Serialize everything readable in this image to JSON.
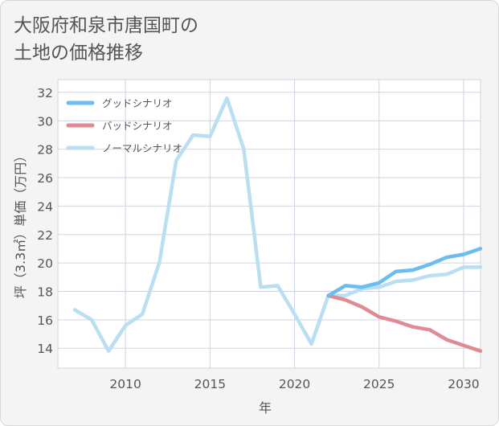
{
  "title": "大阪府和泉市唐国町の\n土地の価格推移",
  "chart_data": {
    "type": "line",
    "xlabel": "年",
    "ylabel": "坪（3.3㎡）単価（万円）",
    "xlim": [
      2006,
      2031
    ],
    "ylim": [
      12.6,
      32.9
    ],
    "xticks": [
      2010,
      2015,
      2020,
      2025,
      2030
    ],
    "yticks": [
      14,
      16,
      18,
      20,
      22,
      24,
      26,
      28,
      30,
      32
    ],
    "legend_position": "top-left",
    "series": [
      {
        "name": "グッドシナリオ",
        "color": "#6bbcf0",
        "x": [
          2022,
          2023,
          2024,
          2025,
          2026,
          2027,
          2028,
          2029,
          2030,
          2031
        ],
        "values": [
          17.7,
          18.4,
          18.3,
          18.6,
          19.4,
          19.5,
          19.9,
          20.4,
          20.6,
          21.0
        ]
      },
      {
        "name": "バッドシナリオ",
        "color": "#e08a94",
        "x": [
          2022,
          2023,
          2024,
          2025,
          2026,
          2027,
          2028,
          2029,
          2030,
          2031
        ],
        "values": [
          17.7,
          17.4,
          16.9,
          16.2,
          15.9,
          15.5,
          15.3,
          14.6,
          14.2,
          13.8
        ]
      },
      {
        "name": "ノーマルシナリオ",
        "color": "#b9dff0",
        "x": [
          2007,
          2008,
          2009,
          2010,
          2011,
          2012,
          2013,
          2014,
          2015,
          2016,
          2017,
          2018,
          2019,
          2020,
          2021,
          2022,
          2023,
          2024,
          2025,
          2026,
          2027,
          2028,
          2029,
          2030,
          2031
        ],
        "values": [
          16.7,
          16.0,
          13.8,
          15.6,
          16.4,
          20.0,
          27.2,
          29.0,
          28.9,
          31.6,
          28.0,
          18.3,
          18.4,
          16.4,
          14.3,
          17.7,
          17.7,
          18.2,
          18.3,
          18.7,
          18.8,
          19.1,
          19.2,
          19.7,
          19.7
        ]
      }
    ]
  }
}
